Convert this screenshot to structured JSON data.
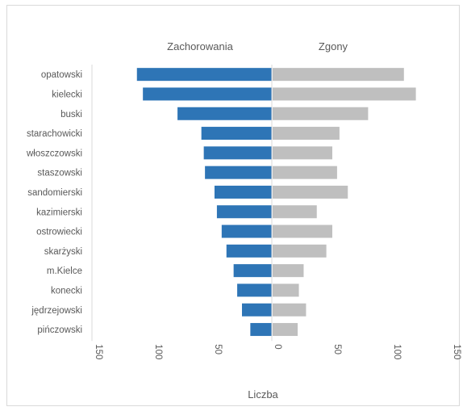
{
  "chart_data": {
    "type": "bar",
    "orientation": "horizontal-butterfly",
    "title": "",
    "xlabel": "Liczba",
    "ylabel": "",
    "categories": [
      "opatowski",
      "kielecki",
      "buski",
      "starachowicki",
      "włoszczowski",
      "staszowski",
      "sandomierski",
      "kazimierski",
      "ostrowiecki",
      "skarżyski",
      "m.Kielce",
      "konecki",
      "jędrzejowski",
      "pińczowski"
    ],
    "series": [
      {
        "name": "Zachorowania",
        "side": "left",
        "color": "#2e75b6",
        "values": [
          113,
          108,
          79,
          59,
          57,
          56,
          48,
          46,
          42,
          38,
          32,
          29,
          25,
          18
        ]
      },
      {
        "name": "Zgony",
        "side": "right",
        "color": "#bfbfbf",
        "values": [
          110,
          120,
          80,
          56,
          50,
          54,
          63,
          37,
          50,
          45,
          26,
          22,
          28,
          21
        ]
      }
    ],
    "xlim": [
      -150,
      150
    ],
    "ticks": [
      -150,
      -100,
      -50,
      0,
      50,
      100,
      150
    ],
    "tick_labels": [
      "150",
      "100",
      "50",
      "0",
      "50",
      "100",
      "150"
    ],
    "grid": false,
    "legend": "top-series-labels"
  }
}
